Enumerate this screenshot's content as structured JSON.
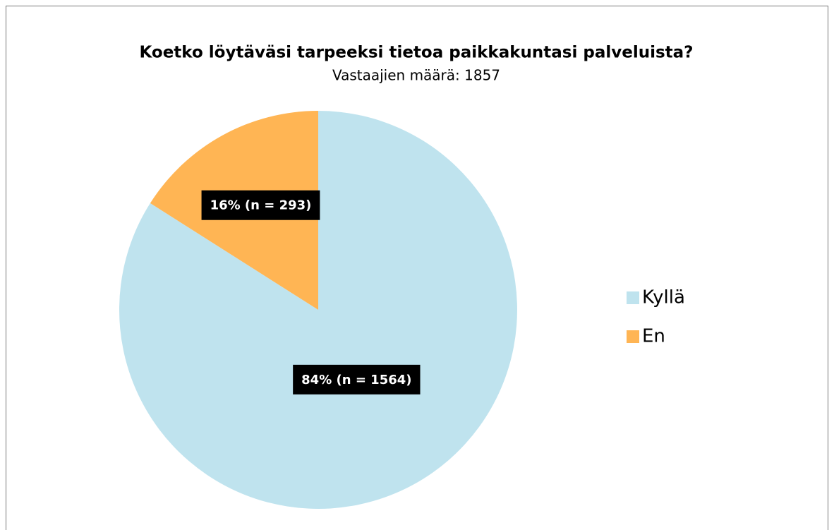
{
  "chart_data": {
    "type": "pie",
    "title": "Koetko löytäväsi tarpeeksi tietoa paikkakuntasi palveluista?",
    "subtitle": "Vastaajien määrä: 1857",
    "categories": [
      "Kyllä",
      "En"
    ],
    "values": [
      84,
      16
    ],
    "value_labels": [
      "84% (n = 1564)",
      "16% (n = 293)"
    ],
    "colors": [
      "#bfe3ee",
      "#ffb554"
    ],
    "legend": "right"
  }
}
